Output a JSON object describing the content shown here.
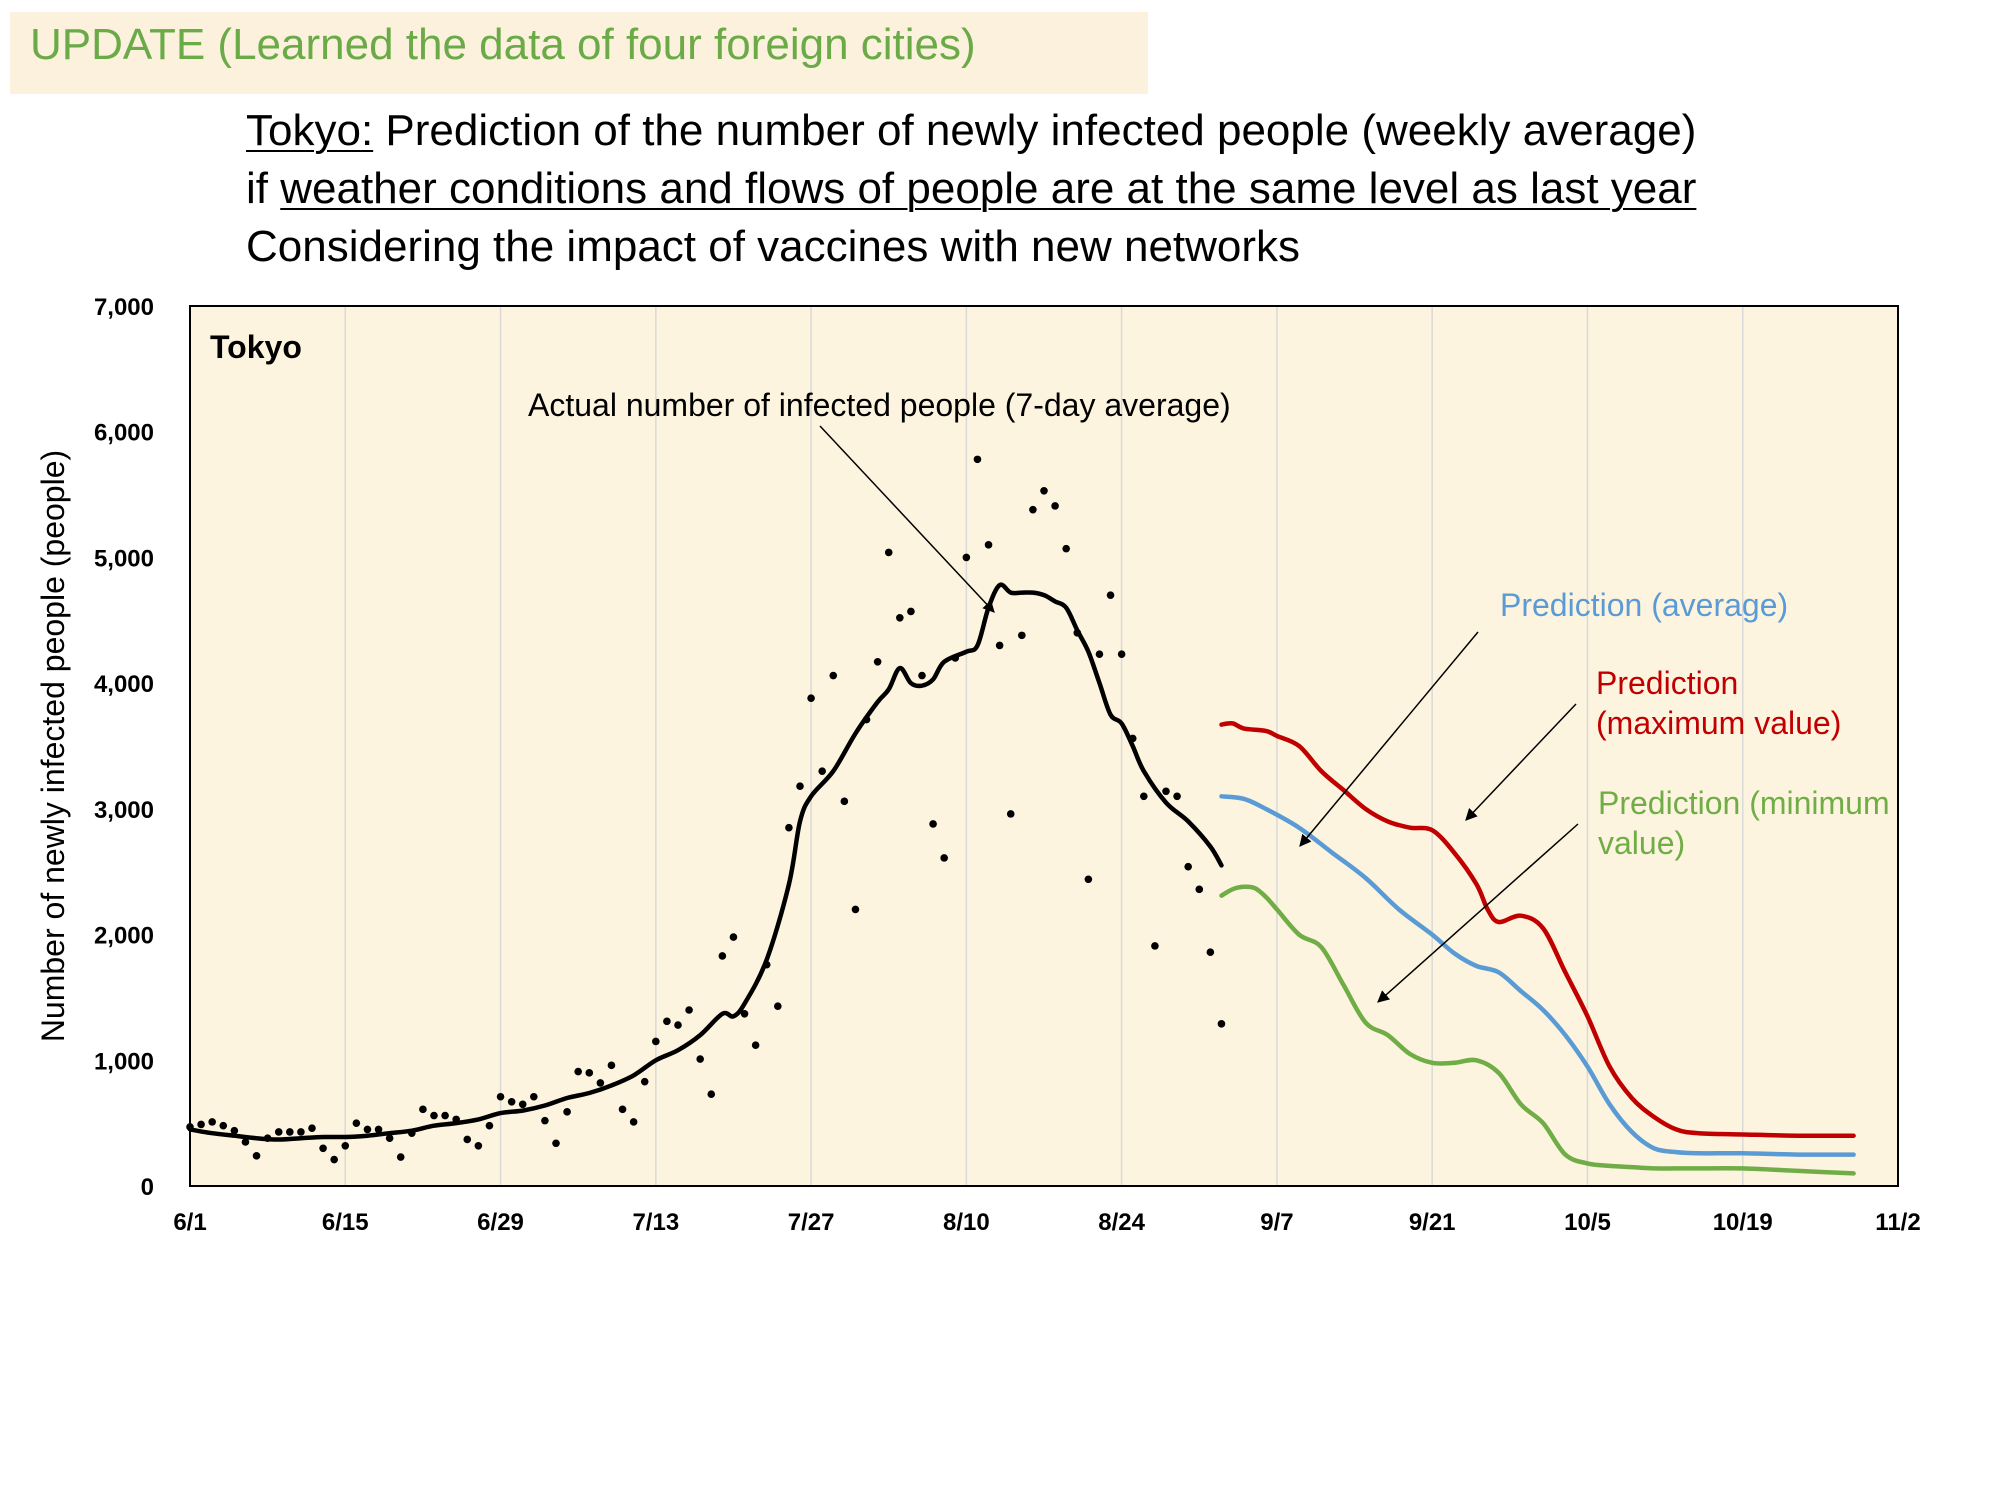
{
  "header": {
    "update": "UPDATE (Learned the data of four foreign cities)",
    "line1_pre": "Tokyo:",
    "line1_post": " Prediction of the number of newly infected people (weekly average)",
    "line2_pre": "if ",
    "line2_underlined": "weather conditions and flows of people are at the same level as last year",
    "line3": "Considering the impact of vaccines with new networks"
  },
  "colors": {
    "plot_bg": "#fdf4df",
    "actual": "#000000",
    "avg": "#5b9bd5",
    "max": "#c00000",
    "min": "#70ad47"
  },
  "chart_data": {
    "type": "line",
    "panel_label": "Tokyo",
    "xlabel": "",
    "ylabel": "Number of newly infected people (people)",
    "ylim": [
      0,
      7000
    ],
    "y_ticks": [
      0,
      1000,
      2000,
      3000,
      4000,
      5000,
      6000,
      7000
    ],
    "y_tick_labels": [
      "0",
      "1,000",
      "2,000",
      "3,000",
      "4,000",
      "5,000",
      "6,000",
      "7,000"
    ],
    "x_ticks": [
      0,
      14,
      28,
      42,
      56,
      70,
      84,
      98,
      112,
      126,
      140,
      154
    ],
    "x_tick_labels": [
      "6/1",
      "6/15",
      "6/29",
      "7/13",
      "7/27",
      "8/10",
      "8/24",
      "9/7",
      "9/21",
      "10/5",
      "10/19",
      "11/2"
    ],
    "grid": "vertical",
    "annotations": [
      {
        "text": "Actual number of infected people (7-day average)",
        "series": "actual"
      },
      {
        "text": "Prediction (average)",
        "series": "avg"
      },
      {
        "text": "Prediction",
        "text2": "(maximum value)",
        "series": "max"
      },
      {
        "text": "Prediction (minimum",
        "text2": "value)",
        "series": "min"
      }
    ],
    "daily_x": [
      0,
      1,
      2,
      3,
      4,
      5,
      6,
      7,
      8,
      9,
      10,
      11,
      12,
      13,
      14,
      15,
      16,
      17,
      18,
      19,
      20,
      21,
      22,
      23,
      24,
      25,
      26,
      27,
      28,
      29,
      30,
      31,
      32,
      33,
      34,
      35,
      36,
      37,
      38,
      39,
      40,
      41,
      42,
      43,
      44,
      45,
      46,
      47,
      48,
      49,
      50,
      51,
      52,
      53,
      54,
      55,
      56,
      57,
      58,
      59,
      60,
      61,
      62,
      63,
      64,
      65,
      66,
      67,
      68,
      69,
      70,
      71,
      72,
      73,
      74,
      75,
      76,
      77,
      78,
      79,
      80,
      81,
      82,
      83,
      84,
      85,
      86,
      87,
      88,
      89,
      90,
      91,
      92,
      93
    ],
    "daily_values": [
      470,
      490,
      510,
      480,
      440,
      350,
      240,
      380,
      430,
      430,
      430,
      460,
      300,
      210,
      320,
      500,
      450,
      450,
      380,
      230,
      420,
      610,
      560,
      560,
      530,
      370,
      320,
      480,
      710,
      670,
      650,
      710,
      520,
      340,
      590,
      910,
      900,
      820,
      960,
      610,
      510,
      830,
      1150,
      1310,
      1280,
      1400,
      1010,
      730,
      1830,
      1980,
      1370,
      1120,
      1760,
      1430,
      2850,
      3180,
      3880,
      3300,
      4060,
      3060,
      2200,
      3710,
      4170,
      5040,
      4520,
      4570,
      4060,
      2880,
      2610,
      4200,
      5000,
      5780,
      5100,
      4300,
      2960,
      4380,
      5380,
      5530,
      5410,
      5070,
      4400,
      2440,
      4230,
      4700,
      4230,
      3560,
      3100,
      1910,
      3140,
      3100,
      2540,
      2360,
      1860,
      1290
    ],
    "series": [
      {
        "name": "actual",
        "x": [
          0,
          2,
          4,
          6,
          8,
          10,
          12,
          14,
          16,
          18,
          20,
          22,
          24,
          26,
          28,
          30,
          32,
          34,
          36,
          38,
          40,
          42,
          44,
          46,
          48,
          49,
          50,
          52,
          54,
          55,
          56,
          58,
          60,
          62,
          63,
          64,
          65,
          66,
          67,
          68,
          70,
          71,
          72,
          73,
          74,
          75,
          76,
          77,
          78,
          79,
          80,
          81,
          82,
          83,
          84,
          85,
          86,
          88,
          90,
          92,
          93
        ],
        "values": [
          450,
          420,
          400,
          380,
          370,
          380,
          390,
          390,
          400,
          420,
          440,
          480,
          500,
          530,
          580,
          600,
          640,
          700,
          740,
          800,
          880,
          1000,
          1080,
          1200,
          1370,
          1350,
          1450,
          1800,
          2400,
          2900,
          3100,
          3300,
          3600,
          3850,
          3950,
          4120,
          4000,
          3980,
          4030,
          4170,
          4250,
          4300,
          4600,
          4780,
          4720,
          4720,
          4720,
          4700,
          4650,
          4600,
          4420,
          4250,
          4000,
          3750,
          3680,
          3500,
          3300,
          3050,
          2900,
          2700,
          2550
        ]
      },
      {
        "name": "Prediction (average)",
        "x": [
          93,
          95,
          97,
          100,
          103,
          106,
          109,
          112,
          114,
          116,
          118,
          120,
          122,
          124,
          126,
          128,
          130,
          132,
          134,
          136,
          140,
          145,
          150
        ],
        "values": [
          3100,
          3080,
          3000,
          2850,
          2650,
          2450,
          2200,
          2000,
          1850,
          1750,
          1700,
          1550,
          1400,
          1200,
          950,
          650,
          430,
          300,
          270,
          260,
          260,
          250,
          250
        ]
      },
      {
        "name": "Prediction (maximum value)",
        "x": [
          93,
          94,
          95,
          97,
          98,
          100,
          102,
          104,
          106,
          108,
          110,
          112,
          114,
          116,
          117,
          118,
          120,
          122,
          124,
          126,
          128,
          130,
          132,
          134,
          136,
          140,
          145,
          150
        ],
        "values": [
          3670,
          3680,
          3640,
          3620,
          3580,
          3500,
          3300,
          3150,
          3000,
          2900,
          2850,
          2830,
          2650,
          2400,
          2200,
          2100,
          2150,
          2050,
          1700,
          1350,
          950,
          700,
          550,
          450,
          420,
          410,
          400,
          400
        ]
      },
      {
        "name": "Prediction (minimum value)",
        "x": [
          93,
          94,
          95,
          96,
          97,
          98,
          100,
          102,
          104,
          106,
          108,
          110,
          112,
          114,
          116,
          118,
          120,
          122,
          124,
          126,
          128,
          130,
          132,
          134,
          136,
          140,
          145,
          150
        ],
        "values": [
          2310,
          2360,
          2380,
          2370,
          2300,
          2200,
          2000,
          1900,
          1600,
          1300,
          1200,
          1050,
          980,
          980,
          1000,
          900,
          650,
          500,
          250,
          180,
          160,
          150,
          140,
          140,
          140,
          140,
          120,
          100
        ]
      }
    ]
  }
}
